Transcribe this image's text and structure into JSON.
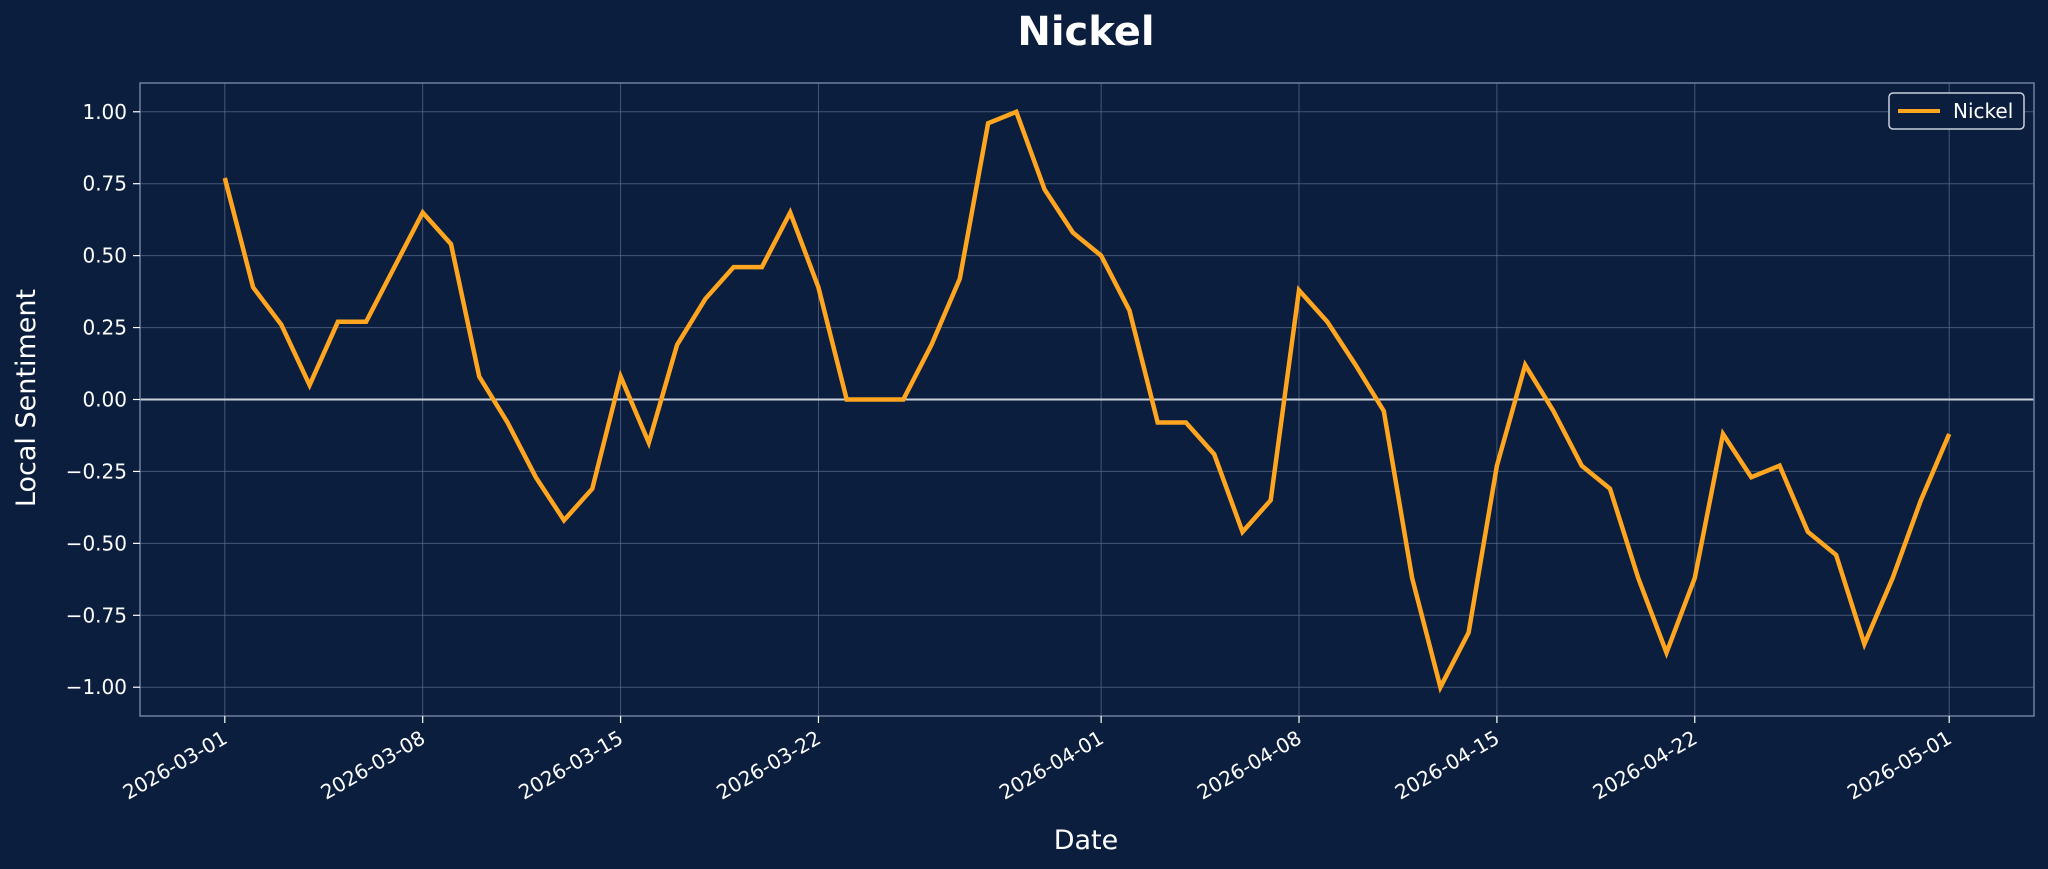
{
  "colors": {
    "background": "#0b1e3e",
    "series": "#ffa51f",
    "grid": "#5a6b8a",
    "spine": "#6f7f9c",
    "zero_line": "#c8d0dc",
    "text": "#ffffff"
  },
  "chart_data": {
    "type": "line",
    "title": "Nickel",
    "xlabel": "Date",
    "ylabel": "Local Sentiment",
    "grid": true,
    "legend_position": "top-right",
    "xlim": [
      "2026-02-26",
      "2026-05-04"
    ],
    "ylim": [
      -1.1,
      1.1
    ],
    "x_ticks": [
      "2026-03-01",
      "2026-03-08",
      "2026-03-15",
      "2026-03-22",
      "2026-04-01",
      "2026-04-08",
      "2026-04-15",
      "2026-04-22",
      "2026-05-01"
    ],
    "y_ticks": [
      "1.00",
      "0.75",
      "0.50",
      "0.25",
      "0.00",
      "−0.25",
      "−0.50",
      "−0.75",
      "−1.00"
    ],
    "y_tick_values": [
      1.0,
      0.75,
      0.5,
      0.25,
      0.0,
      -0.25,
      -0.5,
      -0.75,
      -1.0
    ],
    "series": [
      {
        "name": "Nickel",
        "x": [
          "2026-03-01",
          "2026-03-02",
          "2026-03-03",
          "2026-03-04",
          "2026-03-05",
          "2026-03-06",
          "2026-03-07",
          "2026-03-08",
          "2026-03-09",
          "2026-03-10",
          "2026-03-11",
          "2026-03-12",
          "2026-03-13",
          "2026-03-14",
          "2026-03-15",
          "2026-03-16",
          "2026-03-17",
          "2026-03-18",
          "2026-03-19",
          "2026-03-20",
          "2026-03-21",
          "2026-03-22",
          "2026-03-23",
          "2026-03-24",
          "2026-03-25",
          "2026-03-26",
          "2026-03-27",
          "2026-03-28",
          "2026-03-29",
          "2026-03-30",
          "2026-03-31",
          "2026-04-01",
          "2026-04-02",
          "2026-04-03",
          "2026-04-04",
          "2026-04-05",
          "2026-04-06",
          "2026-04-07",
          "2026-04-08",
          "2026-04-09",
          "2026-04-10",
          "2026-04-11",
          "2026-04-12",
          "2026-04-13",
          "2026-04-14",
          "2026-04-15",
          "2026-04-16",
          "2026-04-17",
          "2026-04-18",
          "2026-04-19",
          "2026-04-20",
          "2026-04-21",
          "2026-04-22",
          "2026-04-23",
          "2026-04-24",
          "2026-04-25",
          "2026-04-26",
          "2026-04-27",
          "2026-04-28",
          "2026-04-29",
          "2026-04-30",
          "2026-05-01"
        ],
        "y": [
          0.77,
          0.39,
          0.26,
          0.05,
          0.27,
          0.27,
          0.46,
          0.65,
          0.54,
          0.08,
          -0.08,
          -0.27,
          -0.42,
          -0.31,
          0.08,
          -0.15,
          0.19,
          0.35,
          0.46,
          0.46,
          0.65,
          0.39,
          0.0,
          0.0,
          0.0,
          0.19,
          0.42,
          0.96,
          1.0,
          0.73,
          0.58,
          0.5,
          0.31,
          -0.08,
          -0.08,
          -0.19,
          -0.46,
          -0.35,
          0.38,
          0.27,
          0.12,
          -0.04,
          -0.62,
          -1.0,
          -0.81,
          -0.23,
          0.12,
          -0.04,
          -0.23,
          -0.31,
          -0.62,
          -0.88,
          -0.62,
          -0.12,
          -0.27,
          -0.23,
          -0.46,
          -0.54,
          -0.85,
          -0.62,
          -0.35,
          -0.12
        ]
      }
    ]
  }
}
